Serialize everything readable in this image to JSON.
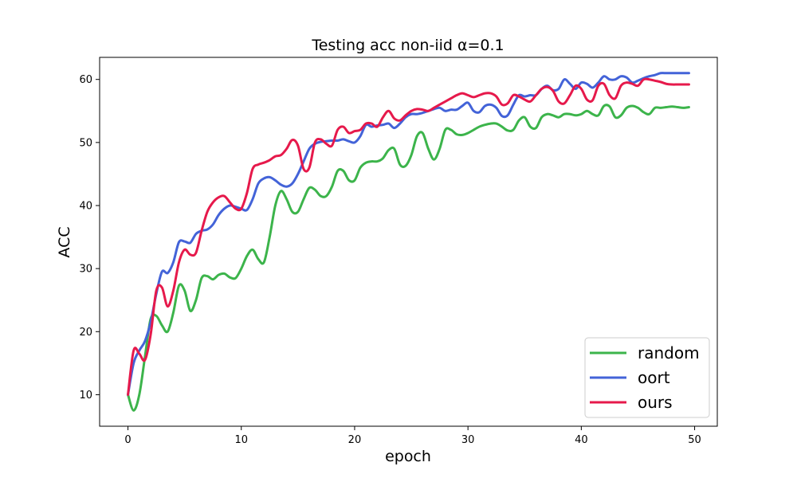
{
  "chart_data": {
    "type": "line",
    "title": "Testing acc non-iid α=0.1",
    "xlabel": "epoch",
    "ylabel": "ACC",
    "xlim": [
      -2.5,
      52
    ],
    "ylim": [
      5,
      63.5
    ],
    "xticks": [
      0,
      10,
      20,
      30,
      40,
      50
    ],
    "yticks": [
      10,
      20,
      30,
      40,
      50,
      60
    ],
    "grid": false,
    "legend_position": "lower-right",
    "x": [
      0,
      0.5,
      1,
      1.5,
      2,
      2.5,
      3,
      3.5,
      4,
      4.5,
      5,
      5.5,
      6,
      6.5,
      7,
      7.5,
      8,
      8.5,
      9,
      9.5,
      10,
      10.5,
      11,
      11.5,
      12,
      12.5,
      13,
      13.5,
      14,
      14.5,
      15,
      15.5,
      16,
      16.5,
      17,
      17.5,
      18,
      18.5,
      19,
      19.5,
      20,
      20.5,
      21,
      21.5,
      22,
      22.5,
      23,
      23.5,
      24,
      24.5,
      25,
      25.5,
      26,
      26.5,
      27,
      27.5,
      28,
      28.5,
      29,
      29.5,
      30,
      30.5,
      31,
      31.5,
      32,
      32.5,
      33,
      33.5,
      34,
      34.5,
      35,
      35.5,
      36,
      36.5,
      37,
      37.5,
      38,
      38.5,
      39,
      39.5,
      40,
      40.5,
      41,
      41.5,
      42,
      42.5,
      43,
      43.5,
      44,
      44.5,
      45,
      45.5,
      46,
      46.5,
      47,
      47.5,
      48,
      48.5,
      49,
      49.5
    ],
    "series": [
      {
        "name": "random",
        "color": "#3cb44b",
        "values": [
          10,
          7.5,
          10,
          16,
          22,
          22.5,
          21,
          20,
          23,
          27.3,
          26.5,
          23.3,
          25,
          28.5,
          28.8,
          28.3,
          29,
          29.2,
          28.6,
          28.5,
          30,
          32,
          33,
          31.5,
          31,
          35,
          40,
          42.3,
          41,
          39,
          39,
          41,
          42.8,
          42.5,
          41.5,
          41.5,
          43,
          45.5,
          45.5,
          44,
          44,
          46,
          46.8,
          47,
          47,
          47.5,
          48.8,
          49,
          46.5,
          46.3,
          48,
          51,
          51.5,
          49,
          47.3,
          49,
          52,
          52,
          51.3,
          51.2,
          51.5,
          52,
          52.5,
          52.8,
          53,
          53,
          52.5,
          51.9,
          52,
          53.5,
          54,
          52.5,
          52.3,
          54,
          54.5,
          54.3,
          54,
          54.5,
          54.5,
          54.3,
          54.5,
          55,
          54.5,
          54.3,
          55.8,
          55.7,
          54,
          54.3,
          55.5,
          55.8,
          55.5,
          54.8,
          54.5,
          55.5,
          55.5,
          55.6,
          55.7,
          55.6,
          55.5,
          55.6
        ]
      },
      {
        "name": "oort",
        "color": "#4363d8",
        "values": [
          10,
          15,
          17,
          18.5,
          21.5,
          26,
          29.5,
          29.3,
          31,
          34.2,
          34.3,
          34.1,
          35.5,
          36,
          36.2,
          37,
          38.5,
          39.5,
          40,
          39.8,
          39.5,
          39.3,
          41,
          43.5,
          44.3,
          44.5,
          44,
          43.3,
          43,
          43.5,
          45,
          47,
          49,
          49.8,
          50.1,
          50.2,
          50.3,
          50.3,
          50.5,
          50.2,
          50,
          51,
          52.8,
          52.5,
          52.7,
          52.8,
          53,
          52.3,
          53,
          54,
          54.5,
          54.5,
          54.7,
          55,
          55.3,
          55.5,
          55,
          55.2,
          55.2,
          55.8,
          56.3,
          55,
          54.8,
          55.8,
          56,
          55.5,
          54.2,
          54.3,
          56,
          57.5,
          57.3,
          57.5,
          57.5,
          58.5,
          59,
          58.3,
          58.5,
          60,
          59.3,
          58.5,
          59.5,
          59.3,
          58.7,
          59.5,
          60.5,
          60,
          60,
          60.5,
          60.3,
          59.5,
          59.8,
          60.2,
          60.5,
          60.7,
          61,
          61,
          61,
          61,
          61,
          61
        ]
      },
      {
        "name": "ours",
        "color": "#e6194b",
        "values": [
          10,
          17,
          16.5,
          15.5,
          19.5,
          26.5,
          27,
          24,
          26.5,
          31,
          33,
          32.2,
          32.5,
          36,
          39,
          40.5,
          41.3,
          41.5,
          40.5,
          39.5,
          39.5,
          42,
          45.8,
          46.5,
          46.8,
          47.2,
          47.8,
          48,
          49,
          50.4,
          49.5,
          45.8,
          46,
          50,
          50.5,
          49.8,
          49.5,
          52,
          52.5,
          51.5,
          51.8,
          52,
          53,
          53,
          52.5,
          54,
          55,
          53.8,
          53.5,
          54.3,
          55,
          55.3,
          55.2,
          55,
          55.5,
          56,
          56.5,
          57,
          57.5,
          57.8,
          57.5,
          57.2,
          57.5,
          57.8,
          57.8,
          57.3,
          56,
          56.2,
          57.5,
          57.3,
          56.8,
          56.5,
          57.5,
          58.5,
          58.8,
          58.2,
          56.5,
          56.2,
          57.5,
          59,
          58.5,
          56.8,
          56.7,
          59,
          59.3,
          57.5,
          57,
          59,
          59.5,
          59.3,
          59,
          60,
          60,
          59.8,
          59.6,
          59.3,
          59.2,
          59.2,
          59.2,
          59.2
        ]
      }
    ]
  }
}
